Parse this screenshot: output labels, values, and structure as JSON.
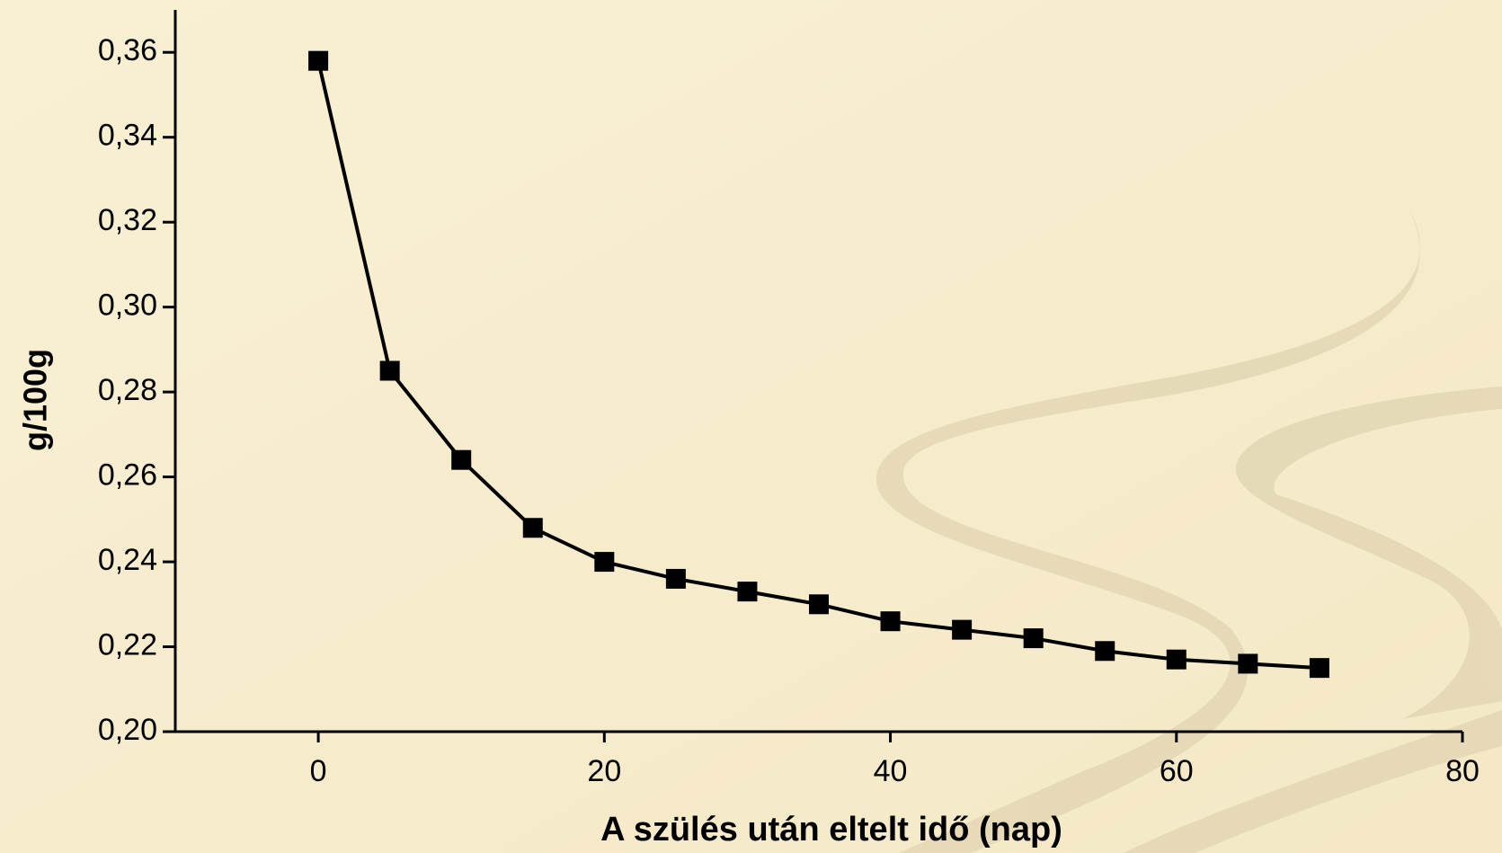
{
  "chart_data": {
    "type": "line",
    "x_label": "A szülés után eltelt idő (nap)",
    "y_label": "g/100g",
    "x": [
      0,
      5,
      10,
      15,
      20,
      25,
      30,
      35,
      40,
      45,
      50,
      55,
      60,
      65,
      70
    ],
    "series": [
      {
        "color": "#000000",
        "values": [
          0.358,
          0.285,
          0.264,
          0.248,
          0.24,
          0.236,
          0.233,
          0.23,
          0.226,
          0.224,
          0.222,
          0.219,
          0.217,
          0.216,
          0.215
        ]
      }
    ],
    "xlim": [
      -10,
      80
    ],
    "xticks": [
      0,
      20,
      40,
      60,
      80
    ],
    "ylim": [
      0.2,
      0.37
    ],
    "yticks": [
      {
        "value": 0.2,
        "label": "0,20"
      },
      {
        "value": 0.22,
        "label": "0,22"
      },
      {
        "value": 0.24,
        "label": "0,24"
      },
      {
        "value": 0.26,
        "label": "0,26"
      },
      {
        "value": 0.28,
        "label": "0,28"
      },
      {
        "value": 0.3,
        "label": "0,30"
      },
      {
        "value": 0.32,
        "label": "0,32"
      },
      {
        "value": 0.34,
        "label": "0,34"
      },
      {
        "value": 0.36,
        "label": "0,36"
      }
    ],
    "grid": false
  }
}
